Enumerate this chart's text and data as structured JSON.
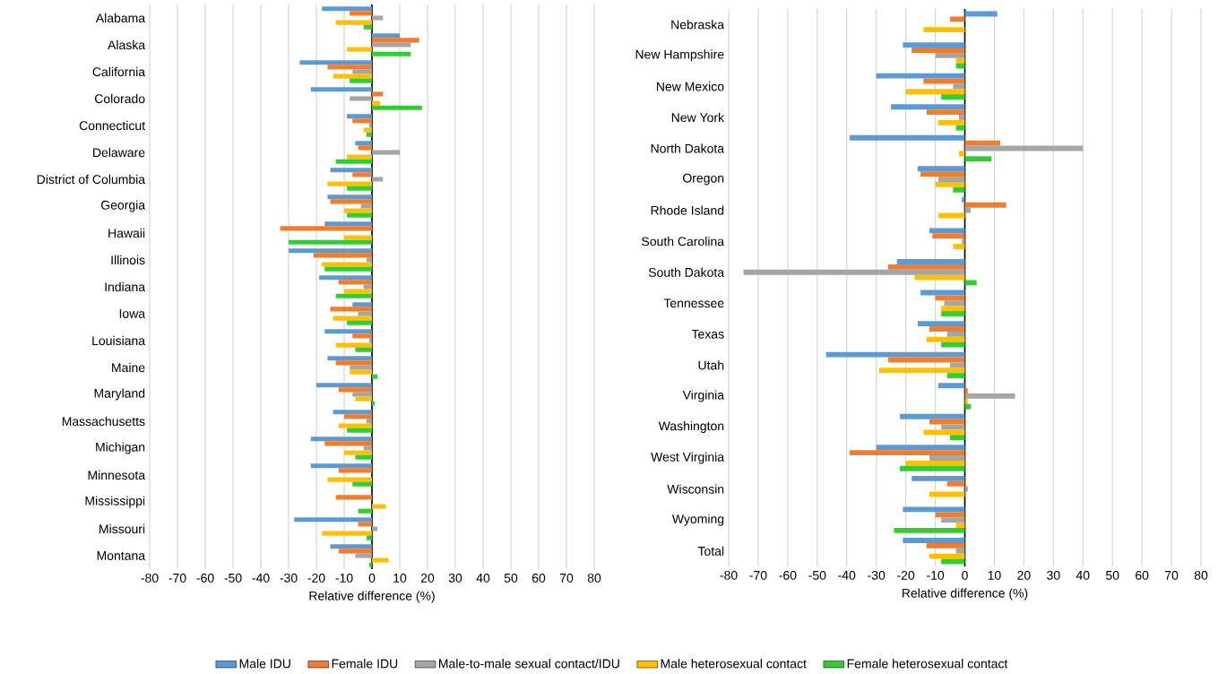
{
  "chart_data": [
    {
      "type": "bar",
      "orientation": "horizontal",
      "xlabel": "Relative difference (%)",
      "grid": "x",
      "legend": "bottom",
      "xlim": [
        -80,
        80
      ],
      "xticks": [
        -80,
        -70,
        -60,
        -50,
        -40,
        -30,
        -20,
        -10,
        0,
        10,
        20,
        30,
        40,
        50,
        60,
        70,
        80
      ],
      "categories": [
        "Alabama",
        "Alaska",
        "California",
        "Colorado",
        "Connecticut",
        "Delaware",
        "District of Columbia",
        "Georgia",
        "Hawaii",
        "Illinois",
        "Indiana",
        "Iowa",
        "Louisiana",
        "Maine",
        "Maryland",
        "Massachusetts",
        "Michigan",
        "Minnesota",
        "Mississippi",
        "Missouri",
        "Montana"
      ],
      "series": [
        {
          "name": "Male IDU",
          "color": "#5b9bd5",
          "values": [
            -18,
            10,
            -26,
            -22,
            -9,
            -6,
            -15,
            -16,
            -17,
            -30,
            -19,
            -7,
            -17,
            -16,
            -20,
            -14,
            -22,
            -22,
            null,
            -28,
            -15
          ]
        },
        {
          "name": "Female IDU",
          "color": "#ed7d31",
          "values": [
            -8,
            17,
            -16,
            4,
            -7,
            -5,
            -7,
            -15,
            -33,
            -21,
            -12,
            -15,
            -7,
            -13,
            -12,
            -10,
            -17,
            -12,
            -13,
            -5,
            -12
          ]
        },
        {
          "name": "Male-to-male sexual contact/IDU",
          "color": "#a5a5a5",
          "values": [
            4,
            14,
            -7,
            -8,
            -1,
            10,
            4,
            -4,
            null,
            -2,
            -3,
            -5,
            -1,
            -8,
            -7,
            -2,
            -3,
            null,
            null,
            2,
            -6
          ]
        },
        {
          "name": "Male heterosexual contact",
          "color": "#ffc000",
          "values": [
            -13,
            -9,
            -14,
            3,
            -3,
            -9,
            -16,
            -10,
            -10,
            -18,
            -10,
            -14,
            -13,
            -8,
            -6,
            -12,
            -10,
            -16,
            5,
            -18,
            6
          ]
        },
        {
          "name": "Female heterosexual contact",
          "color": "#33cc33",
          "values": [
            -3,
            14,
            -8,
            18,
            -2,
            -13,
            -9,
            -9,
            -30,
            -17,
            -13,
            -9,
            -6,
            2,
            1,
            -9,
            -6,
            -7,
            -5,
            -2,
            -1
          ]
        }
      ]
    },
    {
      "type": "bar",
      "orientation": "horizontal",
      "xlabel": "Relative difference (%)",
      "grid": "x",
      "xlim": [
        -80,
        80
      ],
      "xticks": [
        -80,
        -70,
        -60,
        -50,
        -40,
        -30,
        -20,
        -10,
        0,
        10,
        20,
        30,
        40,
        50,
        60,
        70,
        80
      ],
      "categories": [
        "Nebraska",
        "New Hampshire",
        "New Mexico",
        "New York",
        "North Dakota",
        "Oregon",
        "Rhode Island",
        "South Carolina",
        "South Dakota",
        "Tennessee",
        "Texas",
        "Utah",
        "Virginia",
        "Washington",
        "West Virginia",
        "Wisconsin",
        "Wyoming",
        "Total"
      ],
      "series": [
        {
          "color": "#5b9bd5",
          "values": [
            11,
            -21,
            -30,
            -25,
            -39,
            -16,
            -1,
            -12,
            -23,
            -15,
            -16,
            -47,
            -9,
            -22,
            -30,
            -18,
            -21,
            -21
          ]
        },
        {
          "color": "#ed7d31",
          "values": [
            -5,
            -18,
            -14,
            -13,
            12,
            -15,
            14,
            -11,
            -26,
            -10,
            -12,
            -26,
            1,
            -12,
            -39,
            -6,
            -10,
            -13
          ]
        },
        {
          "color": "#a5a5a5",
          "values": [
            null,
            -10,
            -4,
            -2,
            40,
            -9,
            2,
            -1,
            -75,
            -7,
            -6,
            -5,
            17,
            -8,
            -12,
            1,
            -8,
            -3
          ]
        },
        {
          "color": "#ffc000",
          "values": [
            -14,
            -3,
            -20,
            -9,
            -2,
            -10,
            -9,
            -4,
            -17,
            -8,
            -13,
            -29,
            1,
            -14,
            -20,
            -12,
            -3,
            -12
          ]
        },
        {
          "color": "#33cc33",
          "values": [
            null,
            -3,
            -8,
            -3,
            9,
            -4,
            null,
            null,
            4,
            -8,
            -8,
            -6,
            2,
            -5,
            -22,
            null,
            -24,
            -8
          ]
        }
      ]
    }
  ]
}
